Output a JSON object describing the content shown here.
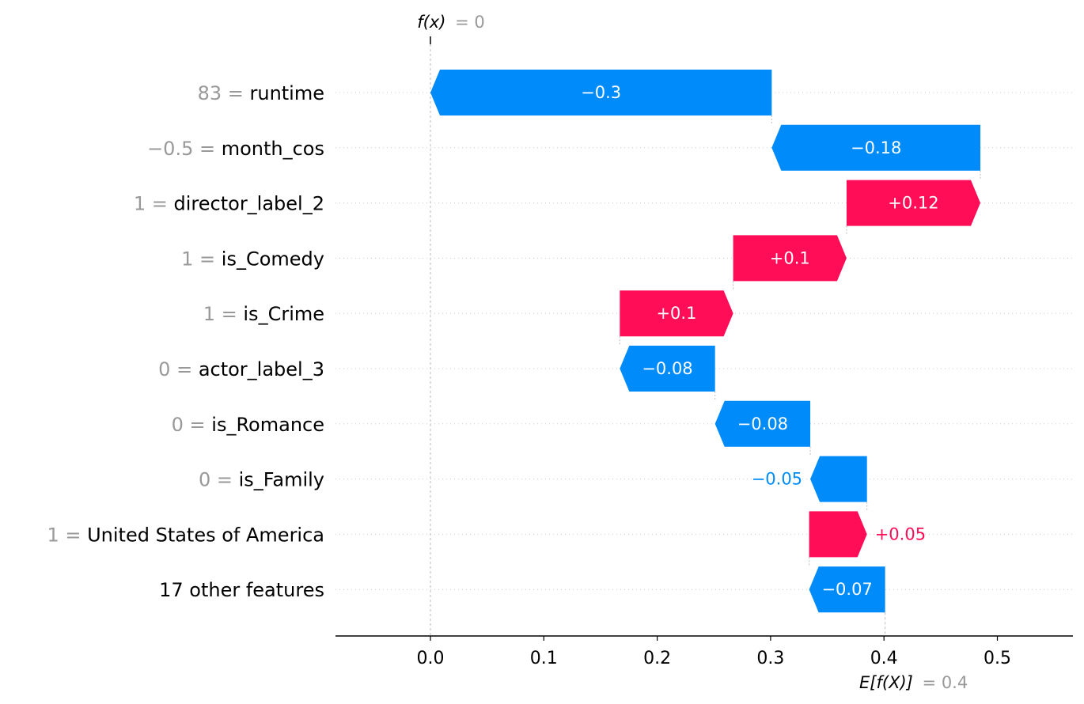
{
  "chart_data": {
    "type": "waterfall",
    "title": "",
    "xlabel": "",
    "ylabel": "",
    "xlim": [
      -0.083,
      0.565
    ],
    "x_ticks": [
      "0.0",
      "0.1",
      "0.2",
      "0.3",
      "0.4",
      "0.5"
    ],
    "x_tick_values": [
      0.0,
      0.1,
      0.2,
      0.3,
      0.4,
      0.5
    ],
    "f_x": {
      "prefix": "f(x)",
      "equals": "= 0",
      "value": 0.0
    },
    "expected_value": {
      "prefix": "E[f(X)]",
      "equals": "= 0.4",
      "value": 0.401
    },
    "features": [
      {
        "value_text": "83",
        "name": "runtime",
        "shap": -0.301,
        "label": "−0.3",
        "label_inside": true
      },
      {
        "value_text": "−0.5",
        "name": "month_cos",
        "shap": -0.184,
        "label": "−0.18",
        "label_inside": true
      },
      {
        "value_text": "1",
        "name": "director_label_2",
        "shap": 0.118,
        "label": "+0.12",
        "label_inside": true
      },
      {
        "value_text": "1",
        "name": "is_Comedy",
        "shap": 0.1,
        "label": "+0.1",
        "label_inside": true
      },
      {
        "value_text": "1",
        "name": "is_Crime",
        "shap": 0.1,
        "label": "+0.1",
        "label_inside": true
      },
      {
        "value_text": "0",
        "name": "actor_label_3",
        "shap": -0.084,
        "label": "−0.08",
        "label_inside": true
      },
      {
        "value_text": "0",
        "name": "is_Romance",
        "shap": -0.084,
        "label": "−0.08",
        "label_inside": true
      },
      {
        "value_text": "0",
        "name": "is_Family",
        "shap": -0.05,
        "label": "−0.05",
        "label_inside": false
      },
      {
        "value_text": "1",
        "name": "United States of America",
        "shap": 0.051,
        "label": "+0.05",
        "label_inside": false
      },
      {
        "value_text": "",
        "name": "17 other features",
        "shap": -0.067,
        "label": "−0.07",
        "label_inside": true
      }
    ],
    "colors": {
      "positive": "#ff0d57",
      "negative": "#008bfb",
      "value_gray": "#999999",
      "axis": "#000000"
    }
  }
}
